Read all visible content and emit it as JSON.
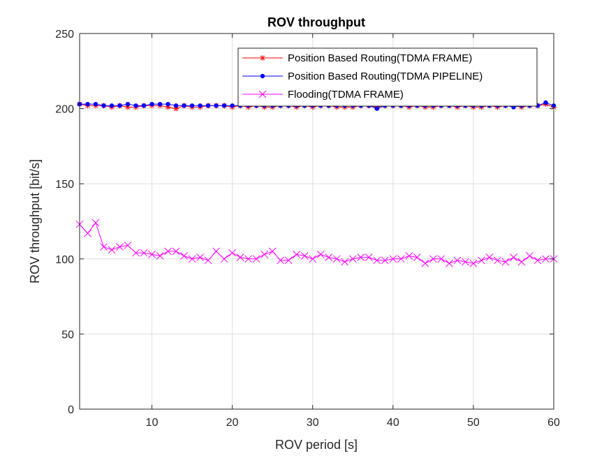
{
  "chart_data": {
    "type": "line",
    "title": "ROV throughput",
    "xlabel": "ROV period [s]",
    "ylabel": "ROV throughput [bit/s]",
    "xlim": [
      1,
      60
    ],
    "ylim": [
      0,
      250
    ],
    "xticks": [
      10,
      20,
      30,
      40,
      50,
      60
    ],
    "yticks": [
      0,
      50,
      100,
      150,
      200,
      250
    ],
    "grid": true,
    "legend_position": "top-right",
    "x": [
      1,
      2,
      3,
      4,
      5,
      6,
      7,
      8,
      9,
      10,
      11,
      12,
      13,
      14,
      15,
      16,
      17,
      18,
      19,
      20,
      21,
      22,
      23,
      24,
      25,
      26,
      27,
      28,
      29,
      30,
      31,
      32,
      33,
      34,
      35,
      36,
      37,
      38,
      39,
      40,
      41,
      42,
      43,
      44,
      45,
      46,
      47,
      48,
      49,
      50,
      51,
      52,
      53,
      54,
      55,
      56,
      57,
      58,
      59,
      60
    ],
    "series": [
      {
        "name": "Position Based Routing(TDMA FRAME)",
        "color": "#ff0000",
        "marker": "asterisk",
        "values": [
          203,
          202,
          202,
          202,
          201,
          202,
          201,
          201,
          202,
          202,
          202,
          201,
          200,
          202,
          201,
          201,
          202,
          202,
          202,
          201,
          202,
          201,
          202,
          201,
          201,
          202,
          202,
          201,
          202,
          201,
          202,
          202,
          201,
          201,
          201,
          202,
          202,
          201,
          202,
          202,
          202,
          201,
          202,
          201,
          201,
          202,
          202,
          201,
          202,
          201,
          201,
          202,
          201,
          202,
          202,
          201,
          202,
          202,
          203,
          201
        ]
      },
      {
        "name": "Position Based Routing(TDMA PIPELINE)",
        "color": "#0000ff",
        "marker": "dot",
        "values": [
          203,
          203,
          203,
          202,
          202,
          202,
          203,
          202,
          202,
          203,
          203,
          203,
          202,
          202,
          202,
          202,
          202,
          202,
          202,
          202,
          202,
          202,
          202,
          202,
          202,
          202,
          202,
          202,
          202,
          202,
          202,
          202,
          202,
          202,
          202,
          202,
          202,
          200,
          202,
          202,
          202,
          202,
          202,
          202,
          202,
          202,
          202,
          202,
          202,
          202,
          202,
          202,
          202,
          202,
          201,
          202,
          202,
          202,
          204,
          202
        ]
      },
      {
        "name": "Flooding(TDMA FRAME)",
        "color": "#ff00ff",
        "marker": "cross",
        "values": [
          123,
          117,
          124,
          108,
          106,
          108,
          109,
          104,
          104,
          103,
          102,
          105,
          105,
          102,
          100,
          101,
          99,
          105,
          100,
          104,
          101,
          100,
          100,
          103,
          105,
          99,
          99,
          103,
          102,
          100,
          103,
          101,
          100,
          98,
          100,
          101,
          101,
          99,
          99,
          100,
          100,
          102,
          101,
          97,
          100,
          100,
          97,
          99,
          98,
          97,
          99,
          101,
          99,
          98,
          101,
          98,
          102,
          99,
          100,
          100
        ]
      }
    ]
  }
}
